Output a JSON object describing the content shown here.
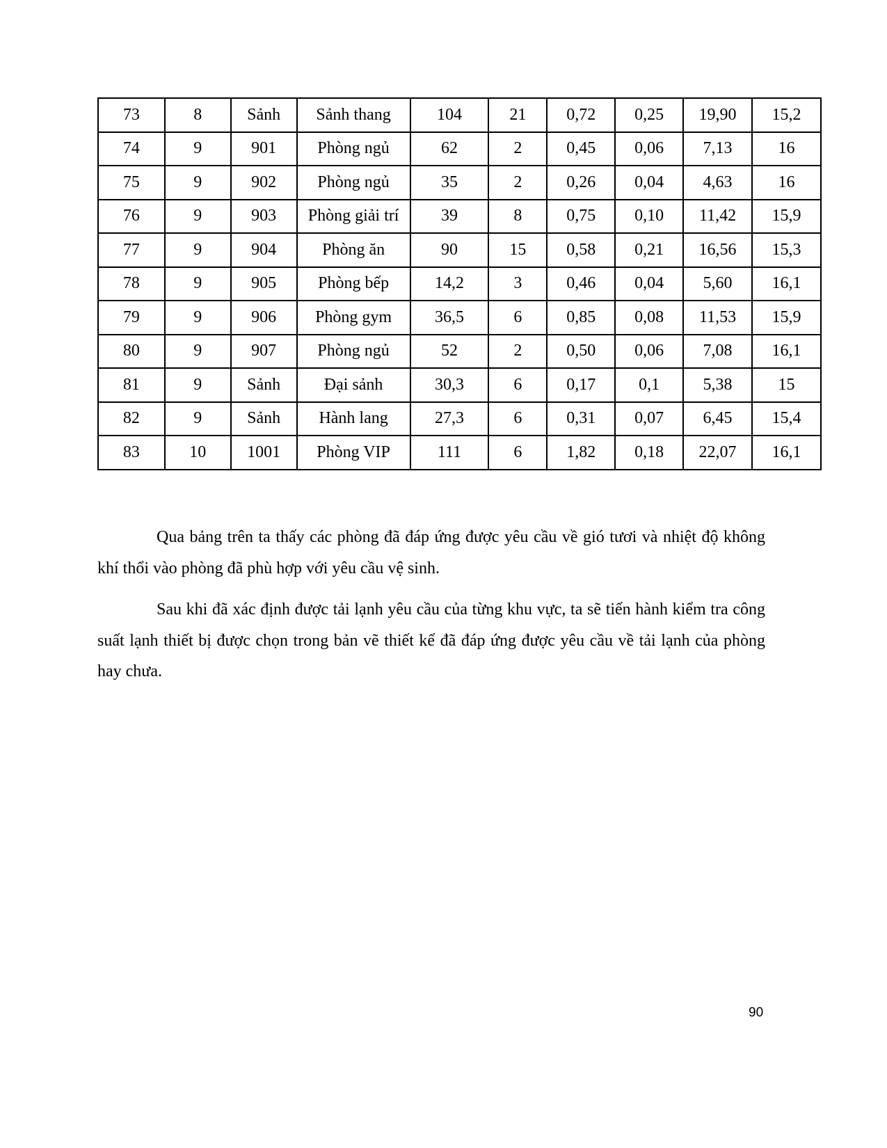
{
  "table": {
    "rows": [
      [
        "73",
        "8",
        "Sảnh",
        "Sảnh thang",
        "104",
        "21",
        "0,72",
        "0,25",
        "19,90",
        "15,2"
      ],
      [
        "74",
        "9",
        "901",
        "Phòng ngủ",
        "62",
        "2",
        "0,45",
        "0,06",
        "7,13",
        "16"
      ],
      [
        "75",
        "9",
        "902",
        "Phòng ngủ",
        "35",
        "2",
        "0,26",
        "0,04",
        "4,63",
        "16"
      ],
      [
        "76",
        "9",
        "903",
        "Phòng giải trí",
        "39",
        "8",
        "0,75",
        "0,10",
        "11,42",
        "15,9"
      ],
      [
        "77",
        "9",
        "904",
        "Phòng ăn",
        "90",
        "15",
        "0,58",
        "0,21",
        "16,56",
        "15,3"
      ],
      [
        "78",
        "9",
        "905",
        "Phòng bếp",
        "14,2",
        "3",
        "0,46",
        "0,04",
        "5,60",
        "16,1"
      ],
      [
        "79",
        "9",
        "906",
        "Phòng gym",
        "36,5",
        "6",
        "0,85",
        "0,08",
        "11,53",
        "15,9"
      ],
      [
        "80",
        "9",
        "907",
        "Phòng ngủ",
        "52",
        "2",
        "0,50",
        "0,06",
        "7,08",
        "16,1"
      ],
      [
        "81",
        "9",
        "Sảnh",
        "Đại sảnh",
        "30,3",
        "6",
        "0,17",
        "0,1",
        "5,38",
        "15"
      ],
      [
        "82",
        "9",
        "Sảnh",
        "Hành lang",
        "27,3",
        "6",
        "0,31",
        "0,07",
        "6,45",
        "15,4"
      ],
      [
        "83",
        "10",
        "1001",
        "Phòng VIP",
        "111",
        "6",
        "1,82",
        "0,18",
        "22,07",
        "16,1"
      ]
    ]
  },
  "paragraphs": [
    "Qua bảng trên ta thấy các phòng đã đáp ứng được yêu cầu về gió tươi và nhiệt độ không khí thổi vào phòng đã phù hợp với yêu cầu vệ sinh.",
    "Sau khi đã xác định được tải lạnh yêu cầu của từng khu vực, ta sẽ tiến hành kiểm tra công suất lạnh thiết bị được chọn trong bản vẽ thiết kế đã đáp ứng được yêu cầu về tải lạnh của phòng hay chưa."
  ],
  "page_number": "90"
}
